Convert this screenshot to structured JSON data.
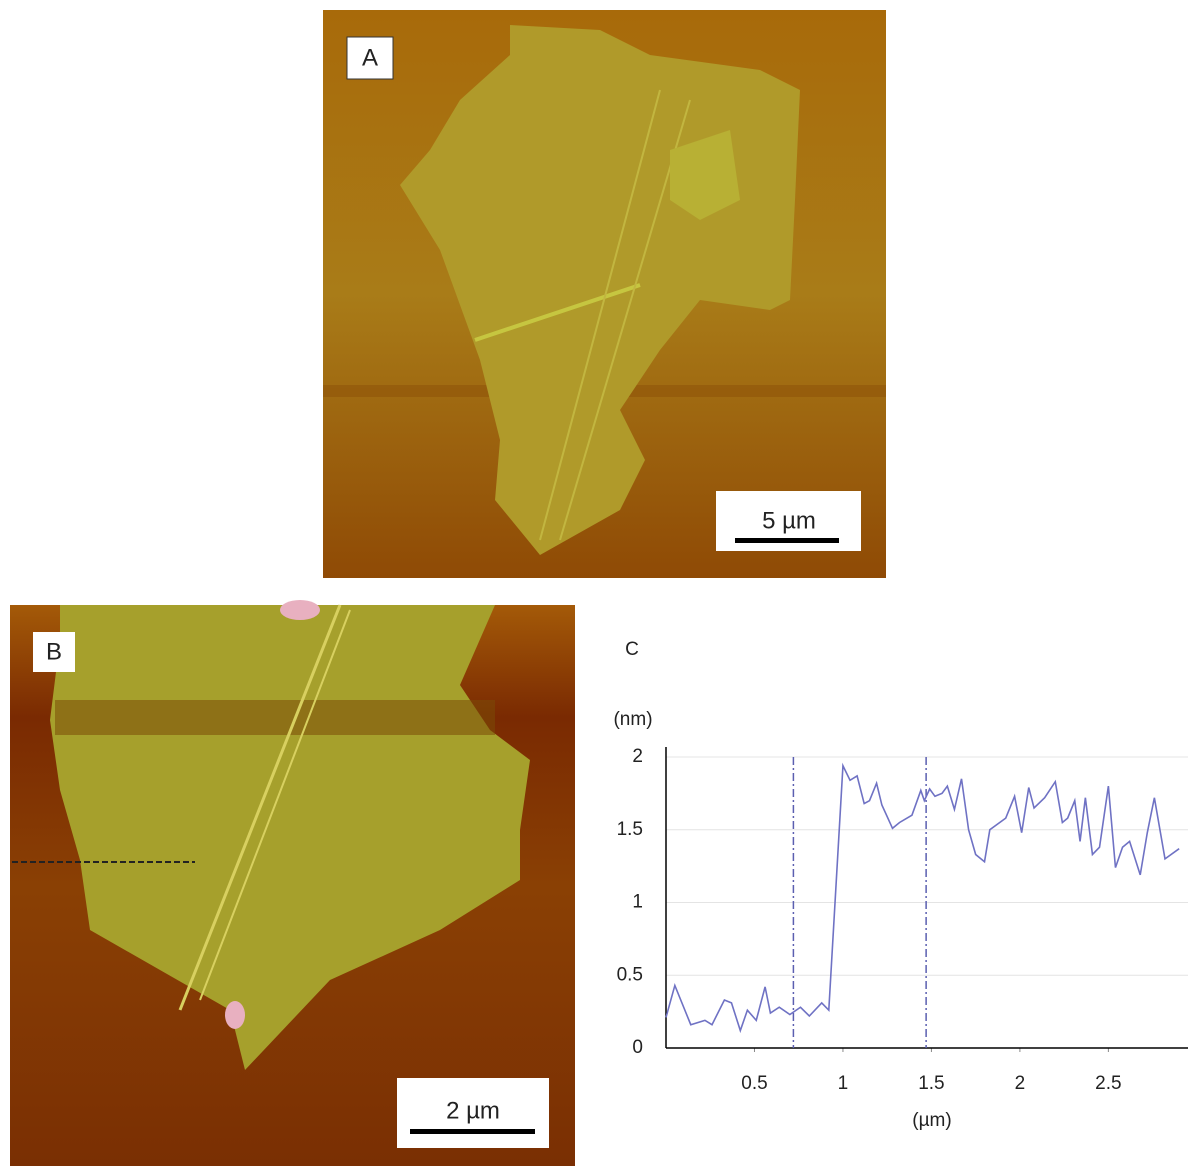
{
  "figure": {
    "panel_a": {
      "label": "A",
      "scale_bar": "5 µm"
    },
    "panel_b": {
      "label": "B",
      "scale_bar": "2 µm"
    }
  },
  "chart_data": {
    "type": "line",
    "label": "C",
    "y_label": "(nm)",
    "x_label": "(µm)",
    "x": [
      0,
      0.05,
      0.14,
      0.22,
      0.26,
      0.33,
      0.37,
      0.42,
      0.46,
      0.51,
      0.56,
      0.59,
      0.64,
      0.7,
      0.76,
      0.81,
      0.88,
      0.92,
      1.0,
      1.04,
      1.08,
      1.12,
      1.15,
      1.19,
      1.22,
      1.28,
      1.32,
      1.39,
      1.44,
      1.46,
      1.49,
      1.52,
      1.56,
      1.59,
      1.63,
      1.67,
      1.71,
      1.75,
      1.8,
      1.83,
      1.92,
      1.97,
      2.01,
      2.05,
      2.08,
      2.14,
      2.2,
      2.24,
      2.27,
      2.31,
      2.34,
      2.37,
      2.41,
      2.45,
      2.5,
      2.54,
      2.58,
      2.62,
      2.68,
      2.72,
      2.76,
      2.82,
      2.9
    ],
    "series": [
      {
        "color": "#6f72c4",
        "values": [
          0.21,
          0.43,
          0.16,
          0.19,
          0.16,
          0.33,
          0.31,
          0.12,
          0.26,
          0.19,
          0.42,
          0.24,
          0.28,
          0.23,
          0.28,
          0.22,
          0.31,
          0.26,
          1.94,
          1.84,
          1.87,
          1.68,
          1.7,
          1.82,
          1.67,
          1.51,
          1.55,
          1.6,
          1.77,
          1.7,
          1.78,
          1.73,
          1.75,
          1.8,
          1.64,
          1.85,
          1.5,
          1.33,
          1.28,
          1.5,
          1.58,
          1.73,
          1.48,
          1.79,
          1.65,
          1.72,
          1.83,
          1.55,
          1.58,
          1.7,
          1.42,
          1.72,
          1.33,
          1.38,
          1.8,
          1.24,
          1.38,
          1.42,
          1.19,
          1.48,
          1.72,
          1.3,
          1.37
        ]
      }
    ],
    "cursors": [
      0.72,
      1.47
    ],
    "cursor_color": "#5b5fb0",
    "xlim": [
      0,
      2.95
    ],
    "ylim": [
      0,
      2
    ],
    "xticks": [
      0.5,
      1,
      1.5,
      2,
      2.5
    ],
    "yticks": [
      0,
      0.5,
      1,
      1.5,
      2
    ],
    "grid": true
  }
}
